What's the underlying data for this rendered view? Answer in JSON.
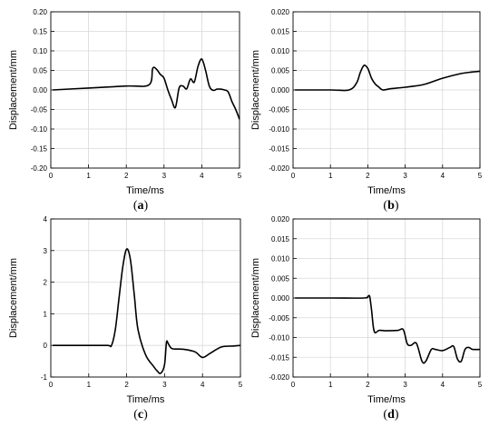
{
  "chart_data": [
    {
      "type": "line",
      "caption_open": "(",
      "caption_letter": "a",
      "caption_close": ")",
      "xlabel": "Time/ms",
      "ylabel": "Displacement/mm",
      "xlim": [
        0,
        5
      ],
      "ylim": [
        -0.2,
        0.2
      ],
      "xticks": [
        0,
        1,
        2,
        3,
        4,
        5
      ],
      "xtick_labels": [
        "0",
        "1",
        "2",
        "3",
        "4",
        "5"
      ],
      "yticks": [
        -0.2,
        -0.15,
        -0.1,
        -0.05,
        0,
        0.05,
        0.1,
        0.15,
        0.2
      ],
      "ytick_labels": [
        "-0.20",
        "-0.15",
        "-0.10",
        "-0.05",
        "0.00",
        "0.05",
        "0.10",
        "0.15",
        "0.20"
      ],
      "grid": true,
      "x": [
        0.05,
        1.0,
        2.0,
        2.6,
        2.7,
        2.8,
        2.9,
        3.0,
        3.1,
        3.2,
        3.3,
        3.4,
        3.5,
        3.6,
        3.7,
        3.8,
        3.9,
        4.0,
        4.1,
        4.2,
        4.3,
        4.4,
        4.5,
        4.6,
        4.7,
        4.8,
        4.9,
        5.0
      ],
      "y": [
        0.0,
        0.005,
        0.01,
        0.013,
        0.055,
        0.053,
        0.04,
        0.03,
        0.0,
        -0.025,
        -0.045,
        0.005,
        0.01,
        0.003,
        0.028,
        0.02,
        0.06,
        0.079,
        0.05,
        0.01,
        -0.001,
        0.002,
        0.002,
        0.0,
        -0.005,
        -0.03,
        -0.05,
        -0.075
      ]
    },
    {
      "type": "line",
      "caption_open": "(",
      "caption_letter": "b",
      "caption_close": ")",
      "xlabel": "Time/ms",
      "ylabel": "Displacement/mm",
      "xlim": [
        0,
        5
      ],
      "ylim": [
        -0.02,
        0.02
      ],
      "xticks": [
        0,
        1,
        2,
        3,
        4,
        5
      ],
      "xtick_labels": [
        "0",
        "1",
        "2",
        "3",
        "4",
        "5"
      ],
      "yticks": [
        -0.02,
        -0.015,
        -0.01,
        -0.005,
        0,
        0.005,
        0.01,
        0.015,
        0.02
      ],
      "ytick_labels": [
        "-0.020",
        "-0.015",
        "-0.010",
        "-0.005",
        "0.000",
        "0.005",
        "0.010",
        "0.015",
        "0.020"
      ],
      "grid": true,
      "x": [
        0.05,
        1.0,
        1.5,
        1.7,
        1.8,
        1.9,
        2.0,
        2.1,
        2.2,
        2.3,
        2.4,
        2.6,
        3.0,
        3.5,
        4.0,
        4.5,
        4.8,
        5.0
      ],
      "y": [
        0.0,
        0.0,
        0.0,
        0.0018,
        0.0045,
        0.0063,
        0.0055,
        0.003,
        0.0015,
        0.0007,
        0.0,
        0.0003,
        0.0007,
        0.0014,
        0.003,
        0.0042,
        0.0046,
        0.0048
      ]
    },
    {
      "type": "line",
      "caption_open": "(",
      "caption_letter": "c",
      "caption_close": ")",
      "xlabel": "Time/ms",
      "ylabel": "Displacement/mm",
      "xlim": [
        0,
        5
      ],
      "ylim": [
        -1,
        4
      ],
      "xticks": [
        0,
        1,
        2,
        3,
        4,
        5
      ],
      "xtick_labels": [
        "0",
        "1",
        "2",
        "3",
        "4",
        "5"
      ],
      "yticks": [
        -1,
        0,
        1,
        2,
        3,
        4
      ],
      "ytick_labels": [
        "-1",
        "0",
        "1",
        "2",
        "3",
        "4"
      ],
      "grid": true,
      "x": [
        0.05,
        1.0,
        1.5,
        1.6,
        1.7,
        1.8,
        1.9,
        2.0,
        2.1,
        2.2,
        2.3,
        2.5,
        2.7,
        2.8,
        2.9,
        3.0,
        3.05,
        3.1,
        3.2,
        3.5,
        3.8,
        4.0,
        4.2,
        4.5,
        4.8,
        5.0
      ],
      "y": [
        0.0,
        0.0,
        0.0,
        0.0,
        0.5,
        1.5,
        2.5,
        3.05,
        2.7,
        1.6,
        0.5,
        -0.3,
        -0.65,
        -0.8,
        -0.88,
        -0.6,
        0.1,
        0.05,
        -0.1,
        -0.12,
        -0.2,
        -0.38,
        -0.25,
        -0.05,
        -0.02,
        0.0
      ]
    },
    {
      "type": "line",
      "caption_open": "(",
      "caption_letter": "d",
      "caption_close": ")",
      "xlabel": "Time/ms",
      "ylabel": "Displacement/mm",
      "xlim": [
        0,
        5
      ],
      "ylim": [
        -0.02,
        0.02
      ],
      "xticks": [
        0,
        1,
        2,
        3,
        4,
        5
      ],
      "xtick_labels": [
        "0",
        "1",
        "2",
        "3",
        "4",
        "5"
      ],
      "yticks": [
        -0.02,
        -0.015,
        -0.01,
        -0.005,
        0,
        0.005,
        0.01,
        0.015,
        0.02
      ],
      "ytick_labels": [
        "-0.020",
        "-0.015",
        "-0.010",
        "-0.005",
        "0.000",
        "0.005",
        "0.010",
        "0.015",
        "0.020"
      ],
      "grid": true,
      "x": [
        0.05,
        1.0,
        1.9,
        2.0,
        2.05,
        2.1,
        2.15,
        2.2,
        2.3,
        2.5,
        2.8,
        2.95,
        3.05,
        3.15,
        3.3,
        3.45,
        3.55,
        3.7,
        3.8,
        4.0,
        4.2,
        4.3,
        4.4,
        4.5,
        4.6,
        4.7,
        4.8,
        5.0
      ],
      "y": [
        0.0,
        0.0,
        0.0,
        0.0004,
        0.0004,
        -0.003,
        -0.0075,
        -0.0088,
        -0.0082,
        -0.0083,
        -0.0082,
        -0.008,
        -0.0115,
        -0.012,
        -0.0115,
        -0.016,
        -0.016,
        -0.013,
        -0.013,
        -0.0133,
        -0.0125,
        -0.0123,
        -0.0155,
        -0.016,
        -0.013,
        -0.0125,
        -0.013,
        -0.013
      ]
    }
  ]
}
